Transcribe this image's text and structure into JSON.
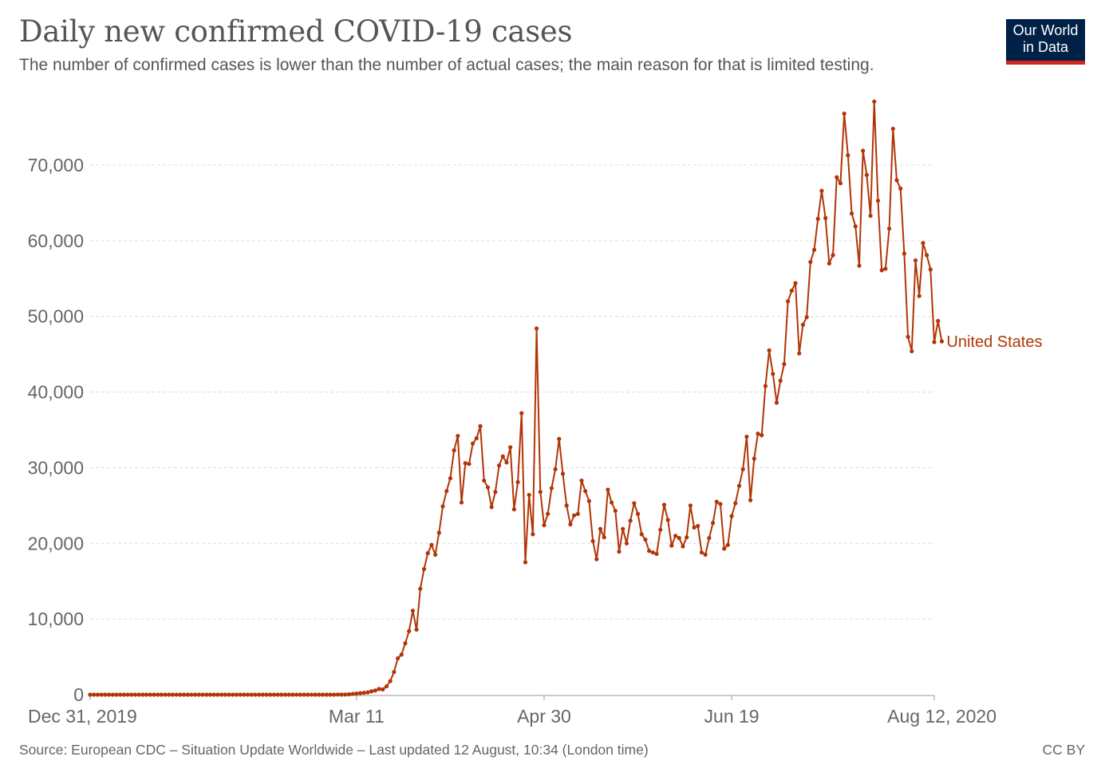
{
  "logo": {
    "line1": "Our World",
    "line2": "in Data"
  },
  "footer": {
    "source": "Source: European CDC – Situation Update Worldwide – Last updated 12 August, 10:34 (London time)",
    "license": "CC BY"
  },
  "colors": {
    "series": "#b13507",
    "grid": "#dddddd",
    "text": "#555555",
    "logo_bg": "#002147",
    "logo_accent": "#ce261e"
  },
  "chart_data": {
    "type": "line",
    "title": "Daily new confirmed COVID-19 cases",
    "subtitle": "The number of confirmed cases is lower than the number of actual cases; the main reason for that is limited testing.",
    "xlabel": "",
    "ylabel": "",
    "ylim": [
      0,
      78000
    ],
    "x_ticks": [
      {
        "label": "Dec 31, 2019",
        "day": 0
      },
      {
        "label": "Mar 11",
        "day": 71
      },
      {
        "label": "Apr 30",
        "day": 121
      },
      {
        "label": "Jun 19",
        "day": 171
      },
      {
        "label": "Aug 12, 2020",
        "day": 225
      }
    ],
    "y_ticks": [
      {
        "label": "0",
        "value": 0
      },
      {
        "label": "10,000",
        "value": 10000
      },
      {
        "label": "20,000",
        "value": 20000
      },
      {
        "label": "30,000",
        "value": 30000
      },
      {
        "label": "40,000",
        "value": 40000
      },
      {
        "label": "50,000",
        "value": 50000
      },
      {
        "label": "60,000",
        "value": 60000
      },
      {
        "label": "70,000",
        "value": 70000
      }
    ],
    "series": [
      {
        "name": "United States",
        "x_start_day": 0,
        "x_step_days": 1,
        "values": [
          0,
          0,
          0,
          0,
          0,
          0,
          0,
          0,
          0,
          0,
          0,
          0,
          0,
          0,
          0,
          0,
          0,
          0,
          0,
          0,
          0,
          0,
          1,
          0,
          0,
          0,
          0,
          0,
          0,
          0,
          0,
          1,
          0,
          0,
          0,
          0,
          0,
          1,
          0,
          0,
          0,
          0,
          0,
          0,
          0,
          0,
          0,
          0,
          0,
          0,
          0,
          0,
          0,
          0,
          0,
          0,
          0,
          0,
          0,
          0,
          0,
          0,
          0,
          2,
          0,
          0,
          18,
          14,
          20,
          50,
          100,
          150,
          200,
          250,
          300,
          450,
          550,
          750,
          700,
          1100,
          1800,
          3000,
          4800,
          5300,
          6800,
          8400,
          11100,
          8600,
          14000,
          16600,
          18700,
          19800,
          18500,
          21400,
          24900,
          26900,
          28600,
          32300,
          34200,
          25400,
          30600,
          30500,
          33200,
          33900,
          35500,
          28300,
          27400,
          24800,
          26800,
          30300,
          31500,
          30700,
          32700,
          24500,
          28100,
          37200,
          17500,
          26400,
          21200,
          48400,
          26800,
          22400,
          23900,
          27300,
          29800,
          33800,
          29200,
          25000,
          22500,
          23700,
          23900,
          28300,
          26900,
          25600,
          20300,
          17900,
          21900,
          20800,
          27100,
          25400,
          24300,
          18900,
          21900,
          20000,
          23000,
          25300,
          23900,
          21200,
          20500,
          19000,
          18800,
          18600,
          21800,
          25100,
          23100,
          19700,
          21000,
          20700,
          19600,
          20800,
          25000,
          22100,
          22300,
          18800,
          18500,
          20700,
          22700,
          25500,
          25200,
          19300,
          19800,
          23600,
          25300,
          27600,
          29800,
          34100,
          25700,
          31200,
          34500,
          34300,
          40800,
          45500,
          42400,
          38600,
          41500,
          43700,
          52000,
          53400,
          54400,
          45100,
          48900,
          49900,
          57200,
          58800,
          62900,
          66600,
          63000,
          57000,
          58100,
          68400,
          67600,
          76800,
          71300,
          63600,
          61900,
          56700,
          71900,
          68700,
          63300,
          78400,
          65300,
          56100,
          56300,
          61600,
          74800,
          68000,
          66900,
          58300,
          47300,
          45400,
          57400,
          52700,
          59700,
          58100,
          56200,
          46600,
          49400,
          46700
        ]
      }
    ]
  }
}
